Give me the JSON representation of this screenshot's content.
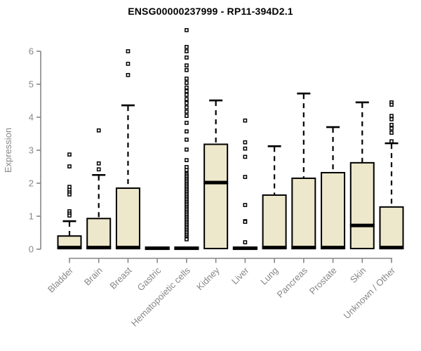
{
  "title": "ENSG00000237999 - RP11-394D2.1",
  "chart_data": {
    "type": "boxplot",
    "title": "ENSG00000237999 - RP11-394D2.1",
    "xlabel": "",
    "ylabel": "Expression",
    "ylim": [
      0,
      6.8
    ],
    "yticks": [
      0,
      1,
      2,
      3,
      4,
      5,
      6
    ],
    "grid": false,
    "legend": "none",
    "box_fill_color": "#EDE7CB",
    "box_border_color": "#000000",
    "median_color": "#000000",
    "axis_color": "#878787",
    "title_color": "#000000",
    "categories": [
      "Bladder",
      "Brain",
      "Breast",
      "Gastric",
      "Hematopoietic cells",
      "Kidney",
      "Liver",
      "Lung",
      "Pancreas",
      "Prostate",
      "Skin",
      "Unknown / Other"
    ],
    "series": [
      {
        "label": "Bladder",
        "q1": 0.02,
        "median": 0.05,
        "q3": 0.4,
        "whisker_low": null,
        "whisker_high": 0.85,
        "outliers": [
          2.87,
          2.51,
          1.89,
          1.8,
          1.72,
          1.66,
          1.15,
          1.08,
          1.02
        ]
      },
      {
        "label": "Brain",
        "q1": 0.02,
        "median": 0.05,
        "q3": 0.93,
        "whisker_low": null,
        "whisker_high": 2.25,
        "outliers": [
          3.6,
          2.6,
          2.42
        ]
      },
      {
        "label": "Breast",
        "q1": 0.02,
        "median": 0.05,
        "q3": 1.85,
        "whisker_low": null,
        "whisker_high": 4.36,
        "outliers": [
          6.0,
          5.62,
          5.28
        ]
      },
      {
        "label": "Gastric",
        "q1": 0.0,
        "median": 0.03,
        "q3": 0.05,
        "whisker_low": null,
        "whisker_high": null,
        "outliers": []
      },
      {
        "label": "Hematopoietic cells",
        "q1": 0.0,
        "median": 0.03,
        "q3": 0.05,
        "whisker_low": null,
        "whisker_high": null,
        "outliers": [
          6.64,
          6.13,
          6.0,
          5.81,
          5.57,
          5.43,
          5.17,
          5.04,
          4.9,
          4.79,
          4.68,
          4.55,
          4.43,
          4.3,
          4.17,
          4.04,
          3.83,
          3.57,
          3.32,
          3.02,
          2.7,
          2.49,
          2.4,
          2.28,
          2.23,
          2.18,
          2.13,
          2.08,
          2.03,
          1.98,
          1.93,
          1.88,
          1.83,
          1.78,
          1.73,
          1.68,
          1.63,
          1.58,
          1.53,
          1.48,
          1.43,
          1.38,
          1.33,
          1.28,
          1.23,
          1.18,
          1.13,
          1.08,
          1.03,
          0.98,
          0.93,
          0.88,
          0.83,
          0.78,
          0.73,
          0.68,
          0.63,
          0.58,
          0.53,
          0.48,
          0.43,
          0.38,
          0.33,
          0.3
        ]
      },
      {
        "label": "Kidney",
        "q1": 0.02,
        "median": 2.02,
        "q3": 3.18,
        "whisker_low": null,
        "whisker_high": 4.51,
        "outliers": []
      },
      {
        "label": "Liver",
        "q1": 0.0,
        "median": 0.03,
        "q3": 0.05,
        "whisker_low": null,
        "whisker_high": null,
        "outliers": [
          3.9,
          3.24,
          3.05,
          2.8,
          2.19,
          1.34,
          0.85,
          0.83,
          0.21
        ]
      },
      {
        "label": "Lung",
        "q1": 0.02,
        "median": 0.05,
        "q3": 1.64,
        "whisker_low": null,
        "whisker_high": 3.12,
        "outliers": []
      },
      {
        "label": "Pancreas",
        "q1": 0.02,
        "median": 0.05,
        "q3": 2.15,
        "whisker_low": null,
        "whisker_high": 4.72,
        "outliers": []
      },
      {
        "label": "Prostate",
        "q1": 0.02,
        "median": 0.05,
        "q3": 2.32,
        "whisker_low": null,
        "whisker_high": 3.7,
        "outliers": []
      },
      {
        "label": "Skin",
        "q1": 0.02,
        "median": 0.72,
        "q3": 2.62,
        "whisker_low": null,
        "whisker_high": 4.45,
        "outliers": []
      },
      {
        "label": "Unknown / Other",
        "q1": 0.02,
        "median": 0.05,
        "q3": 1.28,
        "whisker_low": null,
        "whisker_high": 3.21,
        "outliers": [
          4.45,
          4.38,
          4.04,
          3.94,
          3.77,
          3.66,
          3.53,
          3.27
        ]
      }
    ]
  }
}
